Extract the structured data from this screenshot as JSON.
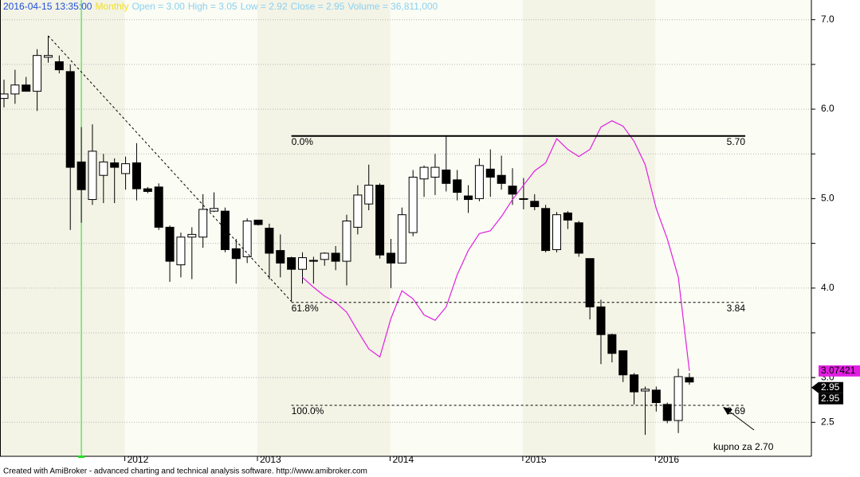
{
  "chart_data": {
    "type": "candlestick",
    "header": {
      "items": [
        "2016-04-15 13:35:00",
        "Monthly",
        "Open = 3.00",
        "High = 3.05",
        "Low = 2.92",
        "Close = 2.95",
        "Volume = 36,811,000"
      ],
      "colors": [
        "#1e50dc",
        "#f0e020",
        "#8cd0f0",
        "#8cd0f0",
        "#8cd0f0",
        "#8cd0f0",
        "#8cd0f0"
      ]
    },
    "categories": [
      null,
      null,
      null,
      null,
      null,
      null,
      null,
      null,
      null,
      null,
      null,
      "2012",
      null,
      null,
      null,
      null,
      null,
      null,
      null,
      null,
      null,
      null,
      null,
      "2013",
      null,
      null,
      null,
      null,
      null,
      null,
      null,
      null,
      null,
      null,
      null,
      "2014",
      null,
      null,
      null,
      null,
      null,
      null,
      null,
      null,
      null,
      null,
      null,
      "2015",
      null,
      null,
      null,
      null,
      null,
      null,
      null,
      null,
      null,
      null,
      null,
      "2016",
      null,
      null,
      null
    ],
    "open": [
      6.12,
      6.17,
      6.27,
      6.2,
      6.58,
      6.53,
      6.42,
      5.41,
      4.99,
      5.26,
      5.4,
      5.28,
      5.4,
      5.11,
      5.13,
      4.68,
      4.26,
      4.57,
      4.57,
      4.86,
      4.86,
      4.44,
      4.35,
      4.76,
      4.67,
      4.42,
      4.34,
      4.21,
      4.31,
      4.32,
      4.39,
      4.3,
      4.68,
      4.94,
      5.15,
      4.39,
      4.28,
      4.62,
      5.22,
      5.24,
      5.32,
      5.21,
      5.03,
      5.0,
      5.33,
      5.26,
      5.14,
      5.0,
      4.97,
      4.89,
      4.43,
      4.84,
      4.73,
      4.33,
      3.79,
      3.48,
      3.3,
      3.03,
      2.85,
      2.86,
      2.7,
      2.52,
      3.0
    ],
    "high": [
      6.33,
      6.44,
      6.36,
      6.67,
      6.82,
      6.6,
      6.5,
      5.8,
      5.83,
      5.5,
      5.45,
      5.47,
      5.62,
      5.13,
      5.17,
      4.7,
      4.62,
      4.68,
      5.05,
      5.07,
      4.9,
      4.55,
      4.78,
      4.76,
      4.72,
      4.6,
      4.35,
      4.4,
      4.35,
      4.4,
      4.47,
      4.82,
      5.15,
      5.38,
      5.17,
      4.55,
      4.9,
      5.32,
      5.37,
      5.5,
      5.7,
      5.32,
      5.15,
      5.45,
      5.55,
      5.48,
      5.34,
      5.23,
      5.05,
      4.93,
      4.85,
      4.86,
      4.75,
      4.33,
      3.87,
      3.49,
      3.3,
      3.05,
      2.9,
      2.9,
      2.72,
      3.1,
      3.05
    ],
    "low": [
      6.02,
      6.06,
      6.2,
      5.98,
      6.52,
      6.4,
      4.65,
      4.73,
      4.93,
      4.95,
      4.95,
      5.1,
      4.98,
      5.06,
      4.65,
      4.07,
      4.12,
      4.1,
      4.45,
      4.85,
      4.4,
      4.05,
      4.28,
      4.7,
      4.1,
      4.12,
      3.85,
      4.05,
      4.05,
      4.25,
      4.2,
      4.03,
      4.6,
      4.87,
      4.33,
      4.0,
      4.28,
      4.58,
      5.02,
      5.04,
      5.08,
      4.98,
      4.84,
      4.97,
      5.02,
      5.1,
      4.93,
      4.88,
      4.87,
      4.4,
      4.4,
      4.66,
      4.35,
      3.65,
      3.15,
      3.17,
      2.95,
      2.7,
      2.36,
      2.62,
      2.49,
      2.38,
      2.92
    ],
    "close": [
      6.17,
      6.27,
      6.2,
      6.6,
      6.6,
      6.44,
      5.35,
      5.1,
      5.53,
      5.41,
      5.35,
      5.39,
      5.11,
      5.08,
      4.68,
      4.3,
      4.57,
      4.6,
      4.88,
      4.89,
      4.43,
      4.33,
      4.75,
      4.71,
      4.39,
      4.28,
      4.21,
      4.34,
      4.3,
      4.39,
      4.3,
      4.75,
      5.04,
      5.15,
      4.37,
      4.28,
      4.82,
      5.24,
      5.35,
      5.35,
      5.17,
      5.07,
      4.99,
      5.37,
      5.24,
      5.17,
      5.05,
      5.0,
      4.91,
      4.42,
      4.82,
      4.76,
      4.39,
      3.79,
      3.48,
      3.27,
      3.03,
      2.84,
      2.87,
      2.72,
      2.52,
      3.01,
      2.95
    ],
    "indicator": {
      "color": "#e020e0",
      "values": [
        null,
        null,
        null,
        null,
        null,
        null,
        null,
        null,
        null,
        null,
        null,
        null,
        null,
        null,
        null,
        null,
        null,
        null,
        null,
        null,
        null,
        null,
        null,
        null,
        null,
        null,
        null,
        4.12,
        4.01,
        3.91,
        3.84,
        3.73,
        3.52,
        3.32,
        3.23,
        3.66,
        3.97,
        3.88,
        3.7,
        3.64,
        3.79,
        4.15,
        4.42,
        4.61,
        4.64,
        4.8,
        4.99,
        5.15,
        5.31,
        5.4,
        5.67,
        5.55,
        5.47,
        5.55,
        5.8,
        5.87,
        5.81,
        5.64,
        5.38,
        4.89,
        4.55,
        4.12,
        3.07421
      ]
    },
    "trendline": {
      "start_index": 4,
      "start_value": 6.82,
      "end_index": 26,
      "end_value": 3.85
    },
    "fib_levels": [
      {
        "value": 5.7,
        "label": "5.70",
        "pct": "0.0%",
        "style": "solid"
      },
      {
        "value": 3.84,
        "label": "3.84",
        "pct": "61.8%",
        "style": "dashed"
      },
      {
        "value": 2.69,
        "label": "2.69",
        "pct": "100.0%",
        "style": "dashed"
      }
    ],
    "fib_start_index": 26,
    "annotation": "kupno za 2.70",
    "selected_index": 7,
    "ylim": [
      2.12,
      7.22
    ],
    "yticks": [
      {
        "value": 2.5,
        "label": "2.5"
      },
      3,
      {
        "value": 3.0,
        "label": "3.0"
      },
      3.5,
      {
        "value": 4.0,
        "label": "4.0"
      },
      4.5,
      {
        "value": 5.0,
        "label": "5.0"
      },
      5.5,
      {
        "value": 6.0,
        "label": "6.0"
      },
      6.5,
      {
        "value": 7.0,
        "label": "7.0"
      }
    ],
    "grid": true,
    "footer": "Created with AmiBroker - advanced charting and technical analysis software. http://www.amibroker.com"
  }
}
